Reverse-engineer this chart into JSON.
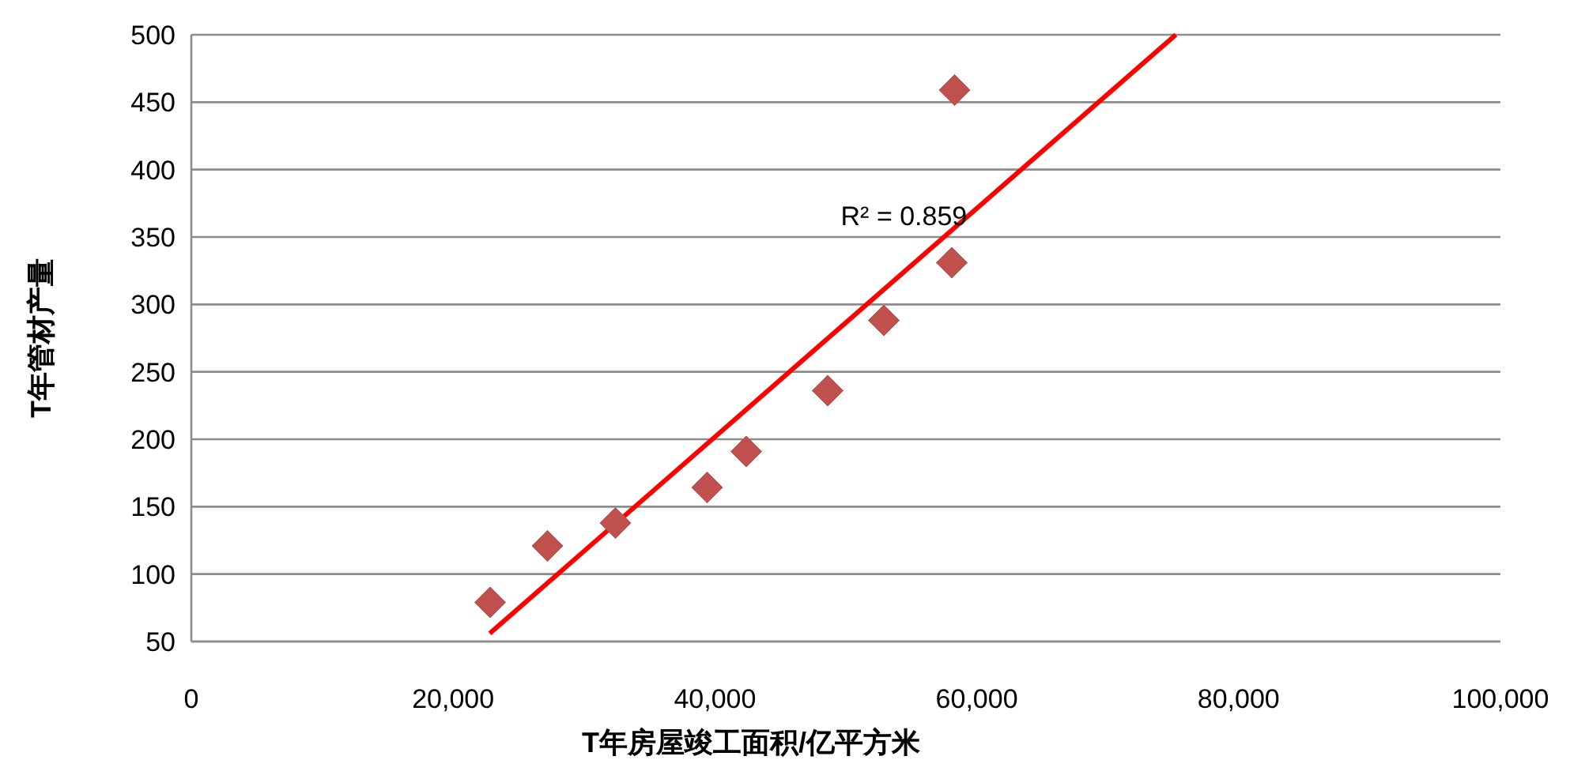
{
  "chart_data": {
    "type": "scatter",
    "xlabel": "T年房屋竣工面积/亿平方米",
    "ylabel": "T年管材产量",
    "xlim": [
      0,
      100000
    ],
    "xticks": [
      {
        "value": 0,
        "label": "0"
      },
      {
        "value": 20000,
        "label": "20,000"
      },
      {
        "value": 40000,
        "label": "40,000"
      },
      {
        "value": 60000,
        "label": "60,000"
      },
      {
        "value": 80000,
        "label": "80,000"
      },
      {
        "value": 100000,
        "label": "100,000"
      }
    ],
    "ylim": [
      50,
      500
    ],
    "yticks": [
      50,
      100,
      150,
      200,
      250,
      300,
      350,
      400,
      450,
      500
    ],
    "grid": "y",
    "series": [
      {
        "type": "scatter",
        "marker": "diamond",
        "color": "#c0504d",
        "x": [
          22800,
          27200,
          32400,
          39400,
          42400,
          48600,
          52900,
          58100,
          58300
        ],
        "values": [
          79,
          121,
          138,
          164,
          191,
          236,
          288,
          331,
          459
        ]
      },
      {
        "type": "line",
        "marker": "none",
        "line_style": "solid",
        "color": "#ff0000",
        "x": [
          22800,
          75200
        ],
        "values": [
          56,
          500
        ]
      }
    ],
    "annotations": [
      "R² = 0.859"
    ]
  }
}
